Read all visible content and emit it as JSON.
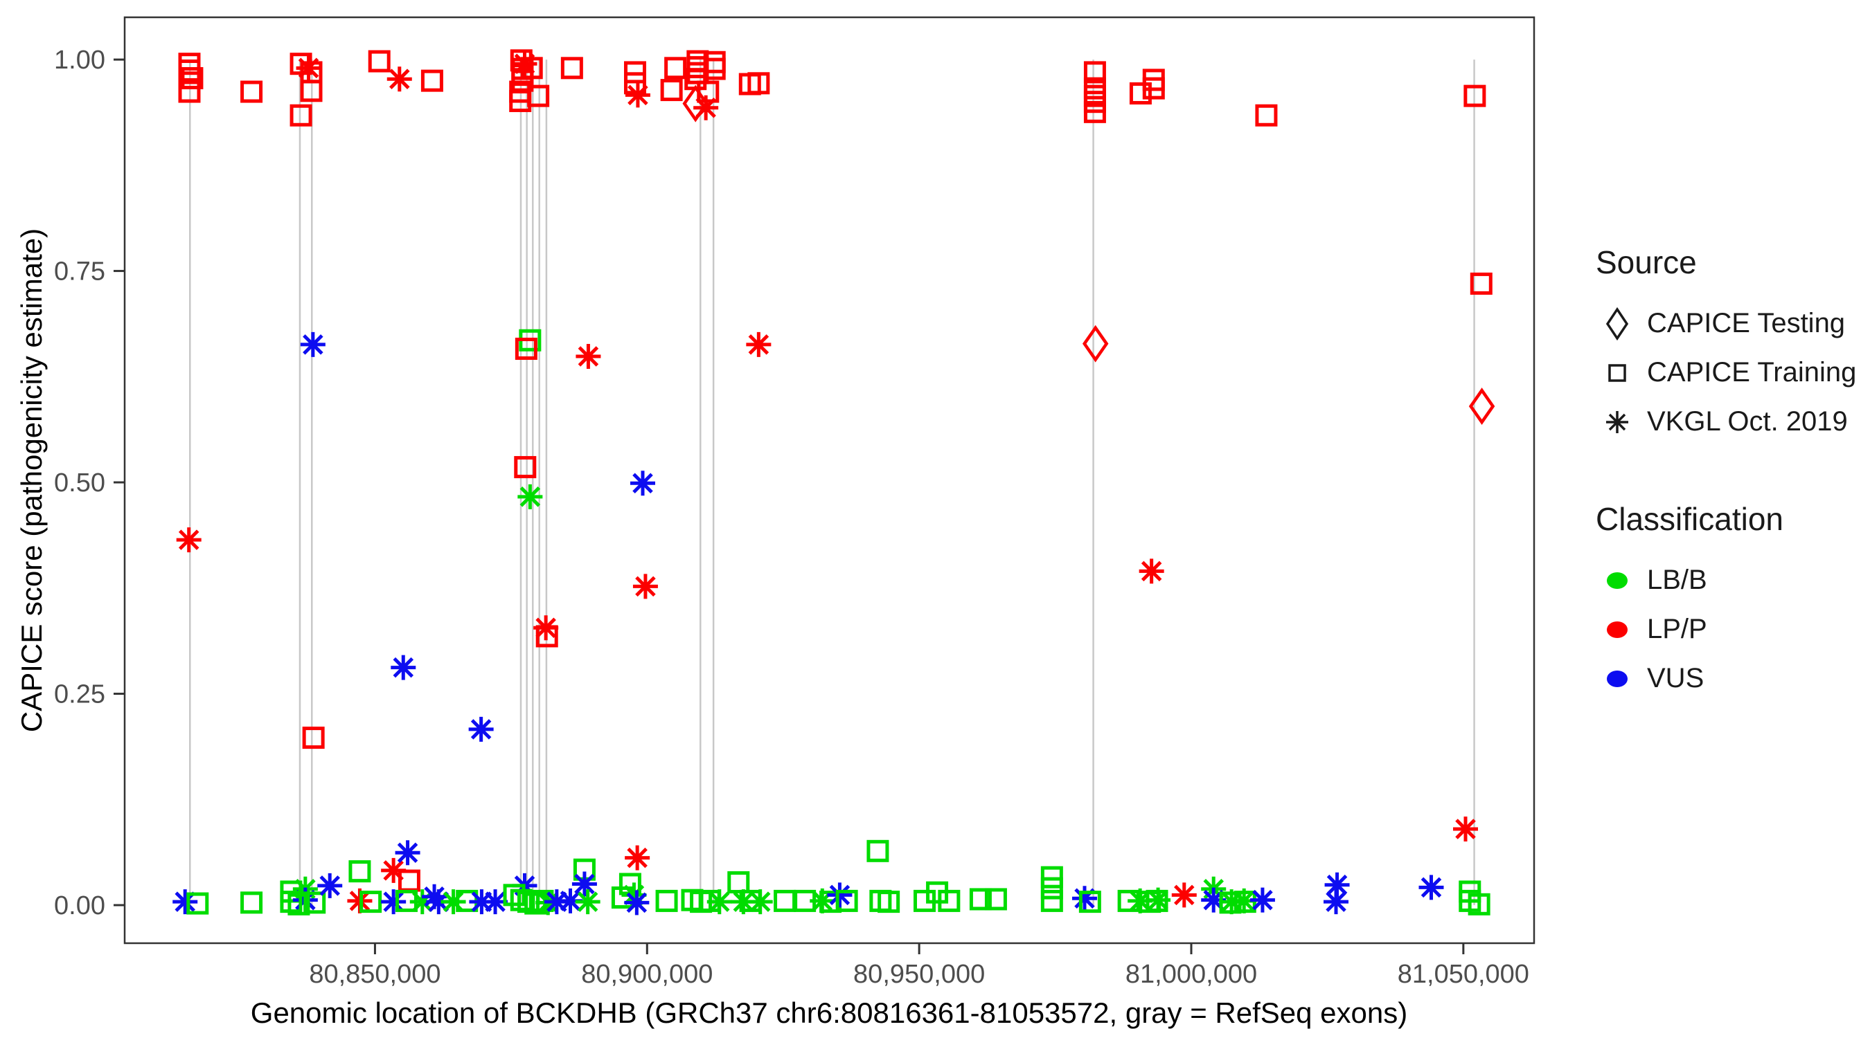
{
  "figure": {
    "x_axis_title": "Genomic location of BCKDHB (GRCh37 chr6:80816361-81053572, gray = RefSeq exons)",
    "y_axis_title": "CAPICE score (pathogenicity estimate)"
  },
  "legend": {
    "source": {
      "title": "Source",
      "items": [
        {
          "label": "CAPICE Testing",
          "glyph": "diamond-icon"
        },
        {
          "label": "CAPICE Training",
          "glyph": "square-icon"
        },
        {
          "label": "VKGL Oct. 2019",
          "glyph": "asterisk-icon"
        }
      ]
    },
    "classification": {
      "title": "Classification",
      "items": [
        {
          "label": "LB/B",
          "color": "#00DC00"
        },
        {
          "label": "LP/P",
          "color": "#FC0000"
        },
        {
          "label": "VUS",
          "color": "#0D0DF0"
        }
      ]
    }
  },
  "chart_data": {
    "type": "scatter",
    "title": "",
    "xlabel": "Genomic location of BCKDHB (GRCh37 chr6:80816361-81053572, gray = RefSeq exons)",
    "ylabel": "CAPICE score (pathogenicity estimate)",
    "xlim": [
      80804000,
      81063000
    ],
    "ylim": [
      -0.045,
      1.05
    ],
    "grid": false,
    "legend_position": "right",
    "x_ticks": [
      {
        "v": 80850000,
        "label": "80,850,000"
      },
      {
        "v": 80900000,
        "label": "80,900,000"
      },
      {
        "v": 80950000,
        "label": "80,950,000"
      },
      {
        "v": 81000000,
        "label": "81,000,000"
      },
      {
        "v": 81050000,
        "label": "81,050,000"
      }
    ],
    "y_ticks": [
      {
        "v": 0.0,
        "label": "0.00"
      },
      {
        "v": 0.25,
        "label": "0.25"
      },
      {
        "v": 0.5,
        "label": "0.50"
      },
      {
        "v": 0.75,
        "label": "0.75"
      },
      {
        "v": 1.0,
        "label": "1.00"
      }
    ],
    "class_colors": {
      "g": "#00DC00",
      "r": "#FC0000",
      "b": "#0D0DF0"
    },
    "exon_line_color": "#C8C8C8",
    "exon_note": "gray vertical segments (score 0 to 1) = RefSeq exons",
    "exon_positions": [
      80816000,
      80836200,
      80838400,
      80876800,
      80877900,
      80879000,
      80880200,
      80881500,
      80909800,
      80912200,
      80982000,
      81052000
    ],
    "points_format": [
      "genomic_position",
      "capice_score",
      "source: sq=CAPICE Training, di=CAPICE Testing, as=VKGL Oct. 2019",
      "class: g=LB/B, r=LP/P, b=VUS"
    ],
    "points": [
      [
        80815900,
        0.995,
        "sq",
        "r"
      ],
      [
        80815900,
        0.987,
        "sq",
        "r"
      ],
      [
        80816400,
        0.978,
        "sq",
        "r"
      ],
      [
        80815900,
        0.962,
        "sq",
        "r"
      ],
      [
        80827300,
        0.962,
        "sq",
        "r"
      ],
      [
        80836400,
        0.995,
        "sq",
        "r"
      ],
      [
        80837800,
        0.99,
        "as",
        "r"
      ],
      [
        80838300,
        0.985,
        "sq",
        "r"
      ],
      [
        80838300,
        0.963,
        "sq",
        "r"
      ],
      [
        80836400,
        0.934,
        "sq",
        "r"
      ],
      [
        80850800,
        0.998,
        "sq",
        "r"
      ],
      [
        80854500,
        0.977,
        "as",
        "r"
      ],
      [
        80860500,
        0.975,
        "sq",
        "r"
      ],
      [
        80876900,
        0.999,
        "sq",
        "r"
      ],
      [
        80877500,
        0.995,
        "as",
        "r"
      ],
      [
        80877100,
        0.989,
        "sq",
        "r"
      ],
      [
        80877100,
        0.982,
        "sq",
        "r"
      ],
      [
        80877100,
        0.975,
        "sq",
        "r"
      ],
      [
        80876700,
        0.962,
        "sq",
        "r"
      ],
      [
        80876700,
        0.951,
        "sq",
        "r"
      ],
      [
        80878800,
        0.99,
        "sq",
        "r"
      ],
      [
        80880000,
        0.957,
        "sq",
        "r"
      ],
      [
        80886200,
        0.99,
        "sq",
        "r"
      ],
      [
        80897800,
        0.985,
        "sq",
        "r"
      ],
      [
        80897800,
        0.972,
        "sq",
        "r"
      ],
      [
        80898300,
        0.958,
        "as",
        "r"
      ],
      [
        80905200,
        0.99,
        "sq",
        "r"
      ],
      [
        80904500,
        0.964,
        "sq",
        "r"
      ],
      [
        80909300,
        0.998,
        "sq",
        "r"
      ],
      [
        80909300,
        0.991,
        "sq",
        "r"
      ],
      [
        80909300,
        0.984,
        "sq",
        "r"
      ],
      [
        80912400,
        0.997,
        "sq",
        "r"
      ],
      [
        80912400,
        0.989,
        "sq",
        "r"
      ],
      [
        80908900,
        0.977,
        "sq",
        "r"
      ],
      [
        80911200,
        0.962,
        "sq",
        "r"
      ],
      [
        80908900,
        0.948,
        "di",
        "r"
      ],
      [
        80910800,
        0.943,
        "as",
        "r"
      ],
      [
        80918900,
        0.971,
        "sq",
        "r"
      ],
      [
        80920500,
        0.972,
        "sq",
        "r"
      ],
      [
        80982300,
        0.985,
        "sq",
        "r"
      ],
      [
        80982300,
        0.966,
        "sq",
        "r"
      ],
      [
        80982300,
        0.957,
        "sq",
        "r"
      ],
      [
        80982300,
        0.95,
        "sq",
        "r"
      ],
      [
        80982300,
        0.938,
        "sq",
        "r"
      ],
      [
        80990700,
        0.96,
        "sq",
        "r"
      ],
      [
        80993100,
        0.976,
        "sq",
        "r"
      ],
      [
        80993100,
        0.966,
        "sq",
        "r"
      ],
      [
        81013800,
        0.934,
        "sq",
        "r"
      ],
      [
        81052100,
        0.957,
        "sq",
        "r"
      ],
      [
        81053300,
        0.735,
        "sq",
        "r"
      ],
      [
        80838600,
        0.663,
        "as",
        "b"
      ],
      [
        80878500,
        0.668,
        "sq",
        "g"
      ],
      [
        80877800,
        0.658,
        "sq",
        "r"
      ],
      [
        80877600,
        0.518,
        "sq",
        "r"
      ],
      [
        80878500,
        0.483,
        "as",
        "g"
      ],
      [
        80881400,
        0.328,
        "as",
        "r"
      ],
      [
        80881600,
        0.318,
        "sq",
        "r"
      ],
      [
        80889200,
        0.649,
        "as",
        "r"
      ],
      [
        80899200,
        0.499,
        "as",
        "b"
      ],
      [
        80899700,
        0.377,
        "as",
        "r"
      ],
      [
        80920500,
        0.663,
        "as",
        "r"
      ],
      [
        80815800,
        0.432,
        "as",
        "r"
      ],
      [
        80855200,
        0.281,
        "as",
        "b"
      ],
      [
        80869500,
        0.208,
        "as",
        "b"
      ],
      [
        80838700,
        0.198,
        "sq",
        "r"
      ],
      [
        80982400,
        0.664,
        "di",
        "r"
      ],
      [
        80992700,
        0.395,
        "as",
        "r"
      ],
      [
        81053400,
        0.59,
        "di",
        "r"
      ],
      [
        81050400,
        0.09,
        "as",
        "r"
      ],
      [
        80815100,
        0.004,
        "as",
        "b"
      ],
      [
        80817400,
        0.002,
        "sq",
        "g"
      ],
      [
        80827300,
        0.003,
        "sq",
        "g"
      ],
      [
        80834600,
        0.016,
        "sq",
        "g"
      ],
      [
        80837200,
        0.019,
        "as",
        "g"
      ],
      [
        80837200,
        0.006,
        "as",
        "b"
      ],
      [
        80834600,
        0.004,
        "sq",
        "g"
      ],
      [
        80838900,
        0.003,
        "sq",
        "g"
      ],
      [
        80836000,
        0.001,
        "sq",
        "g"
      ],
      [
        80841700,
        0.023,
        "as",
        "b"
      ],
      [
        80847200,
        0.04,
        "sq",
        "g"
      ],
      [
        80853400,
        0.041,
        "as",
        "r"
      ],
      [
        80856000,
        0.062,
        "as",
        "b"
      ],
      [
        80856300,
        0.029,
        "sq",
        "r"
      ],
      [
        80847200,
        0.005,
        "as",
        "r"
      ],
      [
        80849200,
        0.004,
        "sq",
        "g"
      ],
      [
        80853400,
        0.004,
        "as",
        "b"
      ],
      [
        80855800,
        0.005,
        "sq",
        "g"
      ],
      [
        80858700,
        0.004,
        "as",
        "g"
      ],
      [
        80860900,
        0.01,
        "as",
        "b"
      ],
      [
        80861700,
        0.004,
        "as",
        "b"
      ],
      [
        80864400,
        0.004,
        "as",
        "g"
      ],
      [
        80866900,
        0.005,
        "sq",
        "g"
      ],
      [
        80869600,
        0.004,
        "as",
        "b"
      ],
      [
        80872100,
        0.004,
        "as",
        "b"
      ],
      [
        80877500,
        0.023,
        "as",
        "b"
      ],
      [
        80875600,
        0.012,
        "sq",
        "g"
      ],
      [
        80876900,
        0.006,
        "sq",
        "g"
      ],
      [
        80878200,
        0.004,
        "sq",
        "g"
      ],
      [
        80879500,
        0.002,
        "sq",
        "g"
      ],
      [
        80880800,
        0.005,
        "sq",
        "g"
      ],
      [
        80881800,
        0.003,
        "as",
        "g"
      ],
      [
        80883400,
        0.004,
        "as",
        "b"
      ],
      [
        80885900,
        0.005,
        "as",
        "b"
      ],
      [
        80888500,
        0.042,
        "sq",
        "g"
      ],
      [
        80888500,
        0.025,
        "as",
        "b"
      ],
      [
        80889100,
        0.004,
        "as",
        "g"
      ],
      [
        80896900,
        0.025,
        "sq",
        "g"
      ],
      [
        80895500,
        0.009,
        "sq",
        "g"
      ],
      [
        80897600,
        0.012,
        "as",
        "g"
      ],
      [
        80898100,
        0.003,
        "as",
        "b"
      ],
      [
        80898200,
        0.056,
        "as",
        "r"
      ],
      [
        80903600,
        0.005,
        "sq",
        "g"
      ],
      [
        80908300,
        0.006,
        "sq",
        "g"
      ],
      [
        80909900,
        0.004,
        "sq",
        "g"
      ],
      [
        80911500,
        0.005,
        "sq",
        "g"
      ],
      [
        80913300,
        0.004,
        "as",
        "g"
      ],
      [
        80916800,
        0.027,
        "sq",
        "g"
      ],
      [
        80917700,
        0.004,
        "as",
        "g"
      ],
      [
        80919000,
        0.005,
        "sq",
        "g"
      ],
      [
        80920800,
        0.004,
        "as",
        "g"
      ],
      [
        80925300,
        0.005,
        "sq",
        "g"
      ],
      [
        80929000,
        0.005,
        "sq",
        "g"
      ],
      [
        80932200,
        0.005,
        "as",
        "g"
      ],
      [
        80933700,
        0.004,
        "sq",
        "g"
      ],
      [
        80935400,
        0.012,
        "as",
        "b"
      ],
      [
        80936700,
        0.005,
        "sq",
        "g"
      ],
      [
        80942400,
        0.064,
        "sq",
        "g"
      ],
      [
        80942900,
        0.005,
        "sq",
        "g"
      ],
      [
        80944400,
        0.004,
        "sq",
        "g"
      ],
      [
        80951000,
        0.005,
        "sq",
        "g"
      ],
      [
        80953300,
        0.015,
        "sq",
        "g"
      ],
      [
        80955500,
        0.005,
        "sq",
        "g"
      ],
      [
        80961300,
        0.007,
        "sq",
        "g"
      ],
      [
        80964100,
        0.007,
        "sq",
        "g"
      ],
      [
        80974400,
        0.033,
        "sq",
        "g"
      ],
      [
        80974400,
        0.02,
        "sq",
        "g"
      ],
      [
        80974400,
        0.005,
        "sq",
        "g"
      ],
      [
        80980400,
        0.008,
        "as",
        "b"
      ],
      [
        80981400,
        0.004,
        "sq",
        "g"
      ],
      [
        80988500,
        0.005,
        "sq",
        "g"
      ],
      [
        80990600,
        0.005,
        "as",
        "g"
      ],
      [
        80992400,
        0.004,
        "sq",
        "g"
      ],
      [
        80993700,
        0.005,
        "sq",
        "g"
      ],
      [
        80993900,
        0.006,
        "as",
        "g"
      ],
      [
        80998700,
        0.012,
        "as",
        "r"
      ],
      [
        81004100,
        0.019,
        "as",
        "g"
      ],
      [
        81004100,
        0.006,
        "as",
        "b"
      ],
      [
        81007200,
        0.003,
        "sq",
        "g"
      ],
      [
        81007400,
        0.004,
        "as",
        "g"
      ],
      [
        81009700,
        0.005,
        "as",
        "g"
      ],
      [
        81009900,
        0.004,
        "sq",
        "g"
      ],
      [
        81013100,
        0.006,
        "as",
        "b"
      ],
      [
        81026800,
        0.024,
        "as",
        "b"
      ],
      [
        81026600,
        0.004,
        "as",
        "b"
      ],
      [
        81044100,
        0.021,
        "as",
        "b"
      ],
      [
        81051200,
        0.016,
        "sq",
        "g"
      ],
      [
        81051200,
        0.005,
        "sq",
        "g"
      ],
      [
        81052900,
        0.001,
        "sq",
        "g"
      ]
    ]
  }
}
